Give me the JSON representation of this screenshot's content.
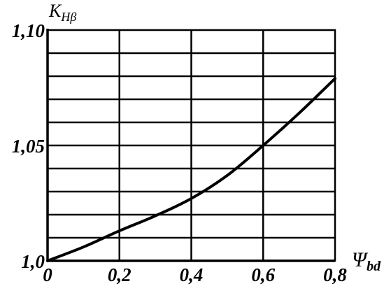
{
  "chart_data": {
    "type": "line",
    "title": "",
    "xlabel": {
      "main": "Ψ",
      "sub": "bd"
    },
    "ylabel": {
      "main": "K",
      "sub": "Hβ"
    },
    "xlim": [
      0,
      0.8
    ],
    "ylim": [
      1.0,
      1.1
    ],
    "x_ticks": [
      {
        "value": 0,
        "label": "0"
      },
      {
        "value": 0.2,
        "label": "0,2"
      },
      {
        "value": 0.4,
        "label": "0,4"
      },
      {
        "value": 0.6,
        "label": "0,6"
      },
      {
        "value": 0.8,
        "label": "0,8"
      }
    ],
    "y_ticks": [
      {
        "value": 1.0,
        "label": "1,0"
      },
      {
        "value": 1.05,
        "label": "1,05"
      },
      {
        "value": 1.1,
        "label": "1,10"
      }
    ],
    "grid": true,
    "x_gridlines": [
      0.2,
      0.4,
      0.6
    ],
    "y_gridlines": [
      1.01,
      1.02,
      1.03,
      1.04,
      1.05,
      1.06,
      1.07,
      1.08,
      1.09
    ],
    "series": [
      {
        "x": [
          0,
          0.1,
          0.2,
          0.3,
          0.4,
          0.5,
          0.6,
          0.7,
          0.8
        ],
        "values": [
          1.0,
          1.006,
          1.013,
          1.0195,
          1.027,
          1.037,
          1.05,
          1.064,
          1.079
        ]
      }
    ]
  }
}
